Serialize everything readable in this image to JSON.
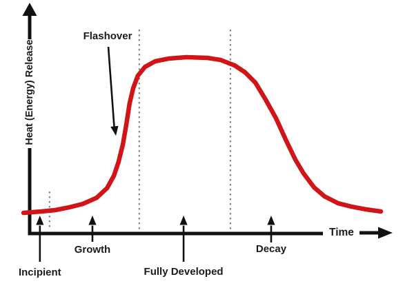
{
  "colors": {
    "curve": "#d01418",
    "axis": "#111111",
    "dotted_boundary": "#7f7f7f",
    "text": "#1b1b1b",
    "background": "#ffffff"
  },
  "chart_data": {
    "type": "line",
    "title": "",
    "xlabel": "Time",
    "ylabel": "Heat (Energy) Release",
    "x_axis_numeric": false,
    "y_axis_numeric": false,
    "axis_note": "Qualitative fire-development curve; no numeric ticks shown. Values below are relative 0-100.",
    "legend": "none",
    "grid": "off",
    "series": [
      {
        "name": "heat-energy-release-curve",
        "color": "#d01418",
        "points": [
          [
            0,
            11.7
          ],
          [
            5,
            12.5
          ],
          [
            8.9,
            13.3
          ],
          [
            12.7,
            14.8
          ],
          [
            16.6,
            16.8
          ],
          [
            20.5,
            20.3
          ],
          [
            23.4,
            25.8
          ],
          [
            25.3,
            32.8
          ],
          [
            26.6,
            40.6
          ],
          [
            27.8,
            50.4
          ],
          [
            28.8,
            62.1
          ],
          [
            29.7,
            73.8
          ],
          [
            30.7,
            82.4
          ],
          [
            32.0,
            89.5
          ],
          [
            34.0,
            94.5
          ],
          [
            36.9,
            97.7
          ],
          [
            40.7,
            99.2
          ],
          [
            45.6,
            100
          ],
          [
            51.4,
            99.6
          ],
          [
            55.2,
            98.4
          ],
          [
            59.1,
            95.3
          ],
          [
            62.0,
            91.4
          ],
          [
            64.9,
            85.5
          ],
          [
            67.8,
            75.8
          ],
          [
            70.7,
            65.2
          ],
          [
            73.6,
            52.3
          ],
          [
            76.1,
            41.8
          ],
          [
            78.4,
            34.0
          ],
          [
            81.3,
            26.2
          ],
          [
            84.2,
            21.1
          ],
          [
            88.0,
            17.2
          ],
          [
            91.9,
            15.2
          ],
          [
            95.8,
            13.7
          ],
          [
            100,
            12.5
          ]
        ]
      }
    ],
    "annotation": {
      "label": "Flashover",
      "points_to": "steep rise of the curve between Growth and Fully Developed phases"
    },
    "phases": [
      {
        "label": "Incipient",
        "t": 4.6
      },
      {
        "label": "Growth",
        "t": 19.3
      },
      {
        "label": "Fully Developed",
        "t": 44.8
      },
      {
        "label": "Decay",
        "t": 69.3
      }
    ],
    "phase_boundaries_t": [
      7.3,
      32.4,
      57.9
    ]
  }
}
